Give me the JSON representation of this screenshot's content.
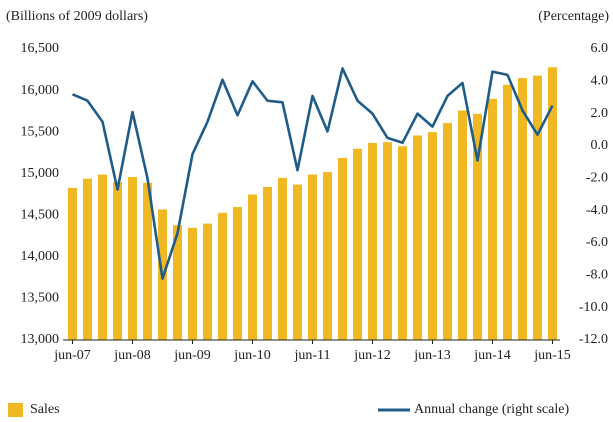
{
  "chart_data": {
    "type": "bar",
    "y_label": "(Billions of 2009 dollars)",
    "y2_label": "(Percentage)",
    "categories": [
      "jun-07",
      null,
      null,
      null,
      "jun-08",
      null,
      null,
      null,
      "jun-09",
      null,
      null,
      null,
      "jun-10",
      null,
      null,
      null,
      "jun-11",
      null,
      null,
      null,
      "jun-12",
      null,
      null,
      null,
      "jun-13",
      null,
      null,
      null,
      "jun-14",
      null,
      null,
      null,
      "jun-15"
    ],
    "series": [
      {
        "name": "Sales",
        "type": "bar",
        "color": "#f0b823",
        "values": [
          14830,
          14940,
          14990,
          14900,
          14960,
          14890,
          14570,
          14380,
          14350,
          14400,
          14530,
          14600,
          14750,
          14840,
          14950,
          14870,
          14990,
          15020,
          15190,
          15300,
          15370,
          15380,
          15330,
          15460,
          15500,
          15610,
          15760,
          15720,
          15900,
          16070,
          16150,
          16180,
          16280
        ]
      },
      {
        "name": "Annual change (right scale)",
        "type": "line",
        "axis": "y2",
        "color": "#1f5c87",
        "values": [
          3.2,
          2.8,
          1.5,
          -2.7,
          2.1,
          -2.0,
          -8.2,
          -5.4,
          -0.5,
          1.5,
          4.1,
          1.9,
          4.0,
          2.8,
          2.7,
          -1.5,
          3.1,
          0.9,
          4.8,
          2.8,
          2.0,
          0.5,
          0.2,
          2.0,
          1.2,
          3.1,
          3.9,
          -0.9,
          4.6,
          4.4,
          2.2,
          0.7,
          2.5
        ]
      }
    ],
    "ylim": [
      13000,
      16500
    ],
    "yticks": [
      {
        "value": 13000,
        "label": "13,000"
      },
      {
        "value": 13500,
        "label": "13,500"
      },
      {
        "value": 14000,
        "label": "14,000"
      },
      {
        "value": 14500,
        "label": "14,500"
      },
      {
        "value": 15000,
        "label": "15,000"
      },
      {
        "value": 15500,
        "label": "15,500"
      },
      {
        "value": 16000,
        "label": "16,000"
      },
      {
        "value": 16500,
        "label": "16,500"
      }
    ],
    "y2lim": [
      -12,
      6
    ],
    "y2ticks": [
      {
        "value": -12,
        "label": "-12.0"
      },
      {
        "value": -10,
        "label": "-10.0"
      },
      {
        "value": -8,
        "label": "-8.0"
      },
      {
        "value": -6,
        "label": "-6.0"
      },
      {
        "value": -4,
        "label": "-4.0"
      },
      {
        "value": -2,
        "label": "-2.0"
      },
      {
        "value": 0,
        "label": "0.0"
      },
      {
        "value": 2,
        "label": "2.0"
      },
      {
        "value": 4,
        "label": "4.0"
      },
      {
        "value": 6,
        "label": "6.0"
      }
    ],
    "legend": "bottom"
  }
}
